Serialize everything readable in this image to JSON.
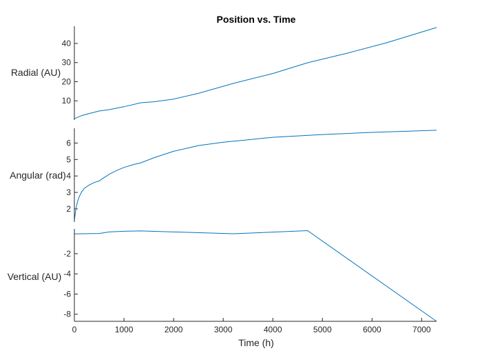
{
  "chart_data": [
    {
      "type": "line",
      "title": "Position vs. Time",
      "ylabel": "Radial (AU)",
      "xlim": [
        0,
        7300
      ],
      "ylim": [
        0,
        49
      ],
      "yticks": [
        10,
        20,
        30,
        40
      ],
      "series": [
        {
          "x": [
            0,
            150,
            300,
            500,
            700,
            1000,
            1340,
            1600,
            2000,
            2500,
            3200,
            4000,
            4700,
            5500,
            6300,
            7300
          ],
          "values": [
            0.7,
            2.3,
            3.4,
            4.7,
            5.4,
            6.9,
            9.0,
            9.5,
            10.9,
            13.9,
            19.1,
            24.3,
            29.9,
            34.9,
            40.4,
            48.3
          ]
        }
      ]
    },
    {
      "type": "line",
      "ylabel": "Angular (rad)",
      "xlim": [
        0,
        7300
      ],
      "ylim": [
        1.2,
        6.9
      ],
      "yticks": [
        2,
        3,
        4,
        5,
        6
      ],
      "series": [
        {
          "x": [
            0,
            20,
            40,
            70,
            100,
            150,
            200,
            300,
            400,
            500,
            600,
            700,
            850,
            1000,
            1200,
            1340,
            1600,
            2000,
            2500,
            3000,
            3500,
            4000,
            5000,
            6000,
            7300
          ],
          "values": [
            1.3,
            1.75,
            2.15,
            2.5,
            2.75,
            3.05,
            3.25,
            3.45,
            3.6,
            3.7,
            3.9,
            4.1,
            4.33,
            4.52,
            4.7,
            4.8,
            5.1,
            5.5,
            5.85,
            6.05,
            6.2,
            6.35,
            6.52,
            6.65,
            6.78
          ]
        }
      ]
    },
    {
      "type": "line",
      "xlabel": "Time (h)",
      "ylabel": "Vertical (AU)",
      "xlim": [
        0,
        7300
      ],
      "ylim": [
        -8.7,
        0.45
      ],
      "xticks": [
        0,
        1000,
        2000,
        3000,
        4000,
        5000,
        6000,
        7000
      ],
      "yticks": [
        -8,
        -6,
        -4,
        -2
      ],
      "series": [
        {
          "x": [
            0,
            500,
            700,
            1000,
            1340,
            3200,
            4700,
            7300
          ],
          "values": [
            -0.05,
            0.0,
            0.15,
            0.22,
            0.25,
            -0.03,
            0.28,
            -8.7
          ]
        }
      ]
    }
  ]
}
